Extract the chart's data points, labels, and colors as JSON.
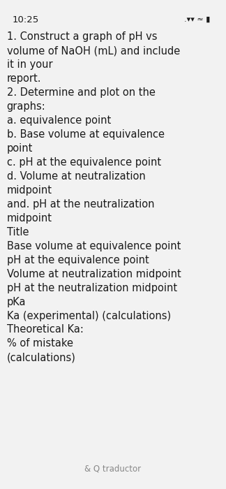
{
  "background_color": "#f2f2f2",
  "status_bar": "10:25",
  "body_lines": [
    "1. Construct a graph of pH vs",
    "volume of NaOH (mL) and include",
    "it in your",
    "report.",
    "2. Determine and plot on the",
    "graphs:",
    "a. equivalence point",
    "b. Base volume at equivalence",
    "point",
    "c. pH at the equivalence point",
    "d. Volume at neutralization",
    "midpoint",
    "and. pH at the neutralization",
    "midpoint",
    "Title",
    "Base volume at equivalence point",
    "pH at the equivalence point",
    "Volume at neutralization midpoint",
    "pH at the neutralization midpoint",
    "pKa",
    "Ka (experimental) (calculations)",
    "Theoretical Ka:",
    "% of mistake",
    "(calculations)"
  ],
  "footer_text": "& Q traductor",
  "text_color": "#1a1a1a",
  "footer_color": "#888888",
  "font_size_body": 10.5,
  "font_size_status": 9.5,
  "font_size_footer": 8.5
}
